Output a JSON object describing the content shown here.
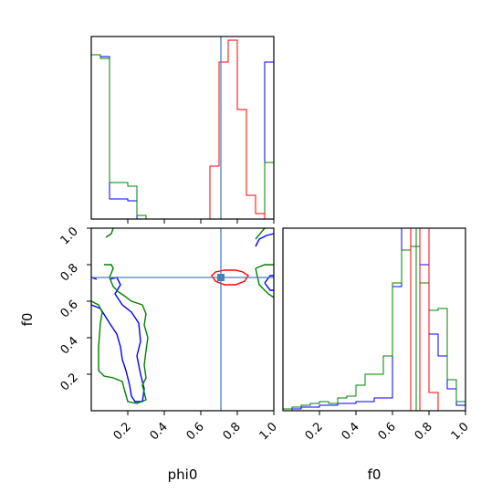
{
  "chart_data": [
    {
      "type": "histogram",
      "panel": "phi0 marginal",
      "xlim": [
        0,
        1
      ],
      "ylim": [
        0,
        1
      ],
      "y_ticks": false,
      "bins": [
        0,
        0.1,
        0.2,
        0.25,
        0.3,
        0.65,
        0.7,
        0.75,
        0.8,
        0.85,
        0.9,
        0.95,
        1.0
      ],
      "series": [
        {
          "color": "#0000ff",
          "bin_edges": [
            0,
            0.05,
            0.1,
            0.2,
            0.25,
            0.95,
            1.0
          ],
          "values": [
            0.9,
            0.89,
            0.11,
            0.1,
            0.0,
            0.86
          ]
        },
        {
          "color": "#008000",
          "bin_edges": [
            0,
            0.05,
            0.1,
            0.2,
            0.25,
            0.3,
            0.95,
            1.0
          ],
          "values": [
            0.9,
            0.88,
            0.2,
            0.18,
            0.02,
            0.0,
            0.31
          ]
        },
        {
          "color": "#ff0000",
          "bin_edges": [
            0.65,
            0.7,
            0.75,
            0.8,
            0.85,
            0.9,
            0.95,
            1.0
          ],
          "values": [
            0.29,
            0.86,
            0.98,
            0.6,
            0.13,
            0.03,
            0.0
          ]
        }
      ],
      "truth_line_x": 0.71
    },
    {
      "type": "contour",
      "panel": "phi0 vs f0",
      "xlabel": "phi0",
      "ylabel": "f0",
      "xlim": [
        0,
        1
      ],
      "ylim": [
        0,
        1
      ],
      "x_ticks": [
        "0.2",
        "0.4",
        "0.6",
        "0.8",
        "1.0"
      ],
      "y_ticks": [
        "0.2",
        "0.4",
        "0.6",
        "0.8",
        "1.0"
      ],
      "series": [
        {
          "color": "#0000ff",
          "contours": [
            [
              [
                0,
                0.58
              ],
              [
                0.05,
                0.56
              ],
              [
                0.1,
                0.48
              ],
              [
                0.14,
                0.42
              ],
              [
                0.16,
                0.35
              ],
              [
                0.17,
                0.28
              ],
              [
                0.19,
                0.22
              ],
              [
                0.21,
                0.14
              ],
              [
                0.22,
                0.08
              ],
              [
                0.24,
                0.05
              ],
              [
                0.28,
                0.05
              ],
              [
                0.29,
                0.12
              ],
              [
                0.27,
                0.2
              ],
              [
                0.25,
                0.3
              ],
              [
                0.27,
                0.38
              ],
              [
                0.26,
                0.48
              ],
              [
                0.22,
                0.54
              ],
              [
                0.17,
                0.58
              ],
              [
                0.13,
                0.64
              ],
              [
                0.16,
                0.69
              ],
              [
                0.14,
                0.73
              ],
              [
                0.1,
                0.72
              ]
            ],
            [
              [
                0,
                0.73
              ],
              [
                0.03,
                0.72
              ]
            ],
            [
              [
                0.9,
                0.9
              ],
              [
                0.92,
                0.94
              ],
              [
                0.96,
                0.96
              ],
              [
                1,
                0.97
              ]
            ],
            [
              [
                0.95,
                0.7
              ],
              [
                0.98,
                0.66
              ],
              [
                1,
                0.66
              ]
            ],
            [
              [
                0.95,
                0.7
              ],
              [
                0.98,
                0.74
              ],
              [
                1,
                0.74
              ]
            ]
          ]
        },
        {
          "color": "#008000",
          "contours": [
            [
              [
                0,
                0.6
              ],
              [
                0.04,
                0.58
              ],
              [
                0.06,
                0.54
              ],
              [
                0.05,
                0.48
              ],
              [
                0.04,
                0.35
              ],
              [
                0.04,
                0.22
              ],
              [
                0.07,
                0.19
              ],
              [
                0.12,
                0.18
              ],
              [
                0.17,
                0.16
              ],
              [
                0.18,
                0.12
              ],
              [
                0.2,
                0.05
              ],
              [
                0.25,
                0.04
              ],
              [
                0.3,
                0.06
              ],
              [
                0.28,
                0.14
              ],
              [
                0.3,
                0.18
              ],
              [
                0.29,
                0.25
              ],
              [
                0.3,
                0.33
              ],
              [
                0.31,
                0.4
              ],
              [
                0.29,
                0.47
              ],
              [
                0.3,
                0.53
              ],
              [
                0.28,
                0.58
              ],
              [
                0.22,
                0.6
              ],
              [
                0.18,
                0.63
              ],
              [
                0.15,
                0.65
              ],
              [
                0.12,
                0.68
              ],
              [
                0.1,
                0.73
              ],
              [
                0.12,
                0.78
              ],
              [
                0.11,
                0.8
              ],
              [
                0.07,
                0.8
              ]
            ],
            [
              [
                0.08,
                0.95
              ],
              [
                0.11,
                0.97
              ],
              [
                0.12,
                1.0
              ]
            ],
            [
              [
                0.9,
                0.78
              ],
              [
                0.95,
                0.8
              ],
              [
                1,
                0.8
              ]
            ],
            [
              [
                0.9,
                0.78
              ],
              [
                0.92,
                0.69
              ],
              [
                0.97,
                0.64
              ],
              [
                1,
                0.62
              ]
            ],
            [
              [
                0.9,
                0.94
              ],
              [
                0.95,
                1.0
              ]
            ]
          ]
        },
        {
          "color": "#ff0000",
          "contours": [
            [
              [
                0.66,
                0.74
              ],
              [
                0.68,
                0.76
              ],
              [
                0.73,
                0.77
              ],
              [
                0.79,
                0.77
              ],
              [
                0.83,
                0.76
              ],
              [
                0.86,
                0.74
              ],
              [
                0.84,
                0.71
              ],
              [
                0.79,
                0.69
              ],
              [
                0.73,
                0.69
              ],
              [
                0.68,
                0.71
              ]
            ]
          ]
        }
      ],
      "truth_point": {
        "x": 0.71,
        "y": 0.73,
        "color": "#4a7fb5"
      }
    },
    {
      "type": "histogram",
      "panel": "f0 marginal",
      "xlabel": "f0",
      "xlim": [
        0,
        1
      ],
      "ylim": [
        0,
        1
      ],
      "y_ticks": false,
      "x_ticks": [
        "0.2",
        "0.4",
        "0.6",
        "0.8",
        "1.0"
      ],
      "series": [
        {
          "color": "#0000ff",
          "bin_edges": [
            0,
            0.05,
            0.1,
            0.2,
            0.3,
            0.4,
            0.5,
            0.6,
            0.65,
            0.7,
            0.75,
            0.8,
            0.85,
            0.9,
            0.95,
            1.0
          ],
          "values": [
            0.0,
            0.01,
            0.02,
            0.03,
            0.04,
            0.05,
            0.07,
            0.68,
            1.0,
            1.0,
            0.8,
            0.42,
            0.3,
            0.12,
            0.03
          ]
        },
        {
          "color": "#008000",
          "bin_edges": [
            0,
            0.05,
            0.1,
            0.15,
            0.2,
            0.25,
            0.3,
            0.35,
            0.4,
            0.45,
            0.5,
            0.55,
            0.6,
            0.65,
            0.7,
            0.75,
            0.8,
            0.85,
            0.9,
            0.95,
            1.0
          ],
          "values": [
            0.01,
            0.02,
            0.03,
            0.04,
            0.05,
            0.04,
            0.07,
            0.08,
            0.14,
            0.2,
            0.2,
            0.3,
            0.7,
            0.88,
            0.9,
            0.7,
            0.55,
            0.56,
            0.17,
            0.05
          ]
        },
        {
          "color": "#ff0000",
          "bin_edges": [
            0.65,
            0.7,
            0.75,
            0.8,
            0.85,
            0.9,
            0.95,
            1.0
          ],
          "values": [
            0.0,
            1.0,
            1.0,
            0.1,
            0.0,
            0.0,
            0.0
          ]
        }
      ],
      "vlines": [
        {
          "x": 0.7,
          "color": "#ff0000"
        },
        {
          "x": 0.73,
          "color": "#008000"
        },
        {
          "x": 0.75,
          "color": "#ff0000"
        }
      ]
    }
  ]
}
